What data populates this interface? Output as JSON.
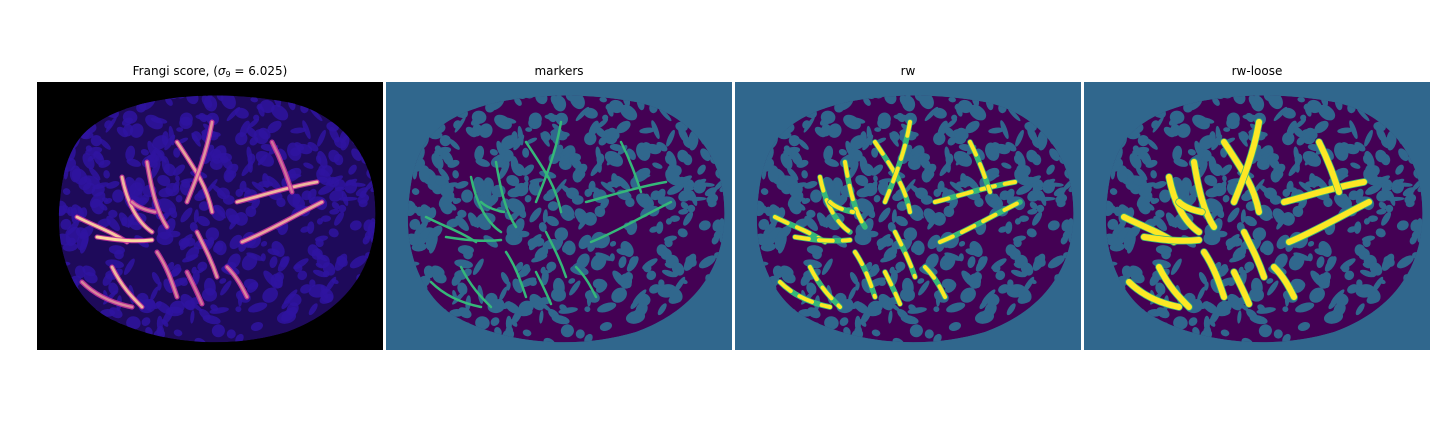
{
  "figure": {
    "panels": [
      {
        "id": "frangi",
        "title_prefix": "Frangi score, (",
        "title_symbol": "σ",
        "title_subscript": "9",
        "title_suffix": " = 6.025)",
        "colors": {
          "background": "#000000",
          "tissue": "#1e0a5a",
          "blob": "#2f14a0",
          "vessel_low": "#c2329b",
          "vessel_high": "#fdd9a0"
        }
      },
      {
        "id": "markers",
        "title": "markers",
        "colors": {
          "background": "#30678d",
          "tissue": "#440154",
          "marker": "#35b779"
        }
      },
      {
        "id": "rw",
        "title": "rw",
        "colors": {
          "background": "#30678d",
          "tissue": "#440154",
          "vessel": "#fde725",
          "outline": "#35b779"
        }
      },
      {
        "id": "rw-loose",
        "title": "rw-loose",
        "colors": {
          "background": "#30678d",
          "tissue": "#440154",
          "vessel": "#fde725",
          "outline": "#35b779"
        }
      }
    ]
  }
}
